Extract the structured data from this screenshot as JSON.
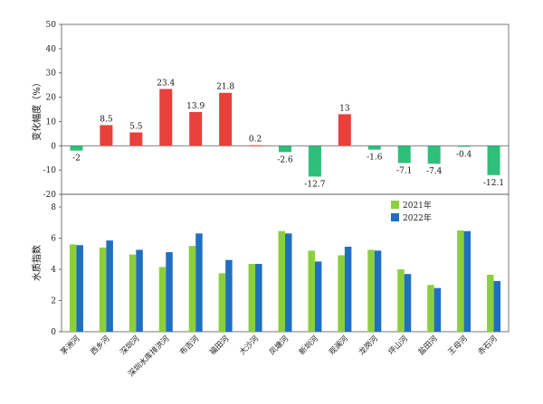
{
  "chart_data": [
    {
      "type": "bar",
      "ylabel": "变化幅度（%）",
      "ylim": [
        -20,
        50
      ],
      "yticks": [
        -20,
        -10,
        0,
        10,
        20,
        30,
        40,
        50
      ],
      "categories": [
        "茅洲河",
        "西乡河",
        "深圳河",
        "深圳水库排洪河",
        "布吉河",
        "福田河",
        "大沙河",
        "凤塘河",
        "新圳河",
        "观澜河",
        "龙岗河",
        "坪山河",
        "盐田河",
        "王母河",
        "赤石河"
      ],
      "values": [
        -2,
        8.5,
        5.5,
        23.4,
        13.9,
        21.8,
        0.2,
        -2.6,
        -12.7,
        13,
        -1.6,
        -7.1,
        -7.4,
        -0.4,
        -12.1
      ],
      "value_labels": [
        "-2",
        "8.5",
        "5.5",
        "23.4",
        "13.9",
        "21.8",
        "0.2",
        "-2.6",
        "-12.7",
        "13",
        "-1.6",
        "-7.1",
        "-7.4",
        "-0.4",
        "-12.1"
      ],
      "colors": {
        "positive": "#e8403a",
        "negative": "#2ebf7a"
      }
    },
    {
      "type": "bar",
      "ylabel": "水质指数",
      "ylim": [
        0,
        8
      ],
      "yticks": [
        0,
        2,
        4,
        6,
        8
      ],
      "categories": [
        "茅洲河",
        "西乡河",
        "深圳河",
        "深圳水库排洪河",
        "布吉河",
        "福田河",
        "大沙河",
        "凤塘河",
        "新圳河",
        "观澜河",
        "龙岗河",
        "坪山河",
        "盐田河",
        "王母河",
        "赤石河"
      ],
      "series": [
        {
          "name": "2021年",
          "color": "#8ccf3c",
          "values": [
            5.6,
            5.4,
            4.95,
            4.15,
            5.5,
            3.75,
            4.35,
            6.45,
            5.2,
            4.9,
            5.25,
            4.0,
            3.0,
            6.5,
            3.65
          ]
        },
        {
          "name": "2022年",
          "color": "#1f6fc0",
          "values": [
            5.55,
            5.85,
            5.25,
            5.1,
            6.3,
            4.6,
            4.35,
            6.3,
            4.5,
            5.45,
            5.2,
            3.7,
            2.8,
            6.45,
            3.25
          ]
        }
      ],
      "legend_position": "top-right"
    }
  ]
}
